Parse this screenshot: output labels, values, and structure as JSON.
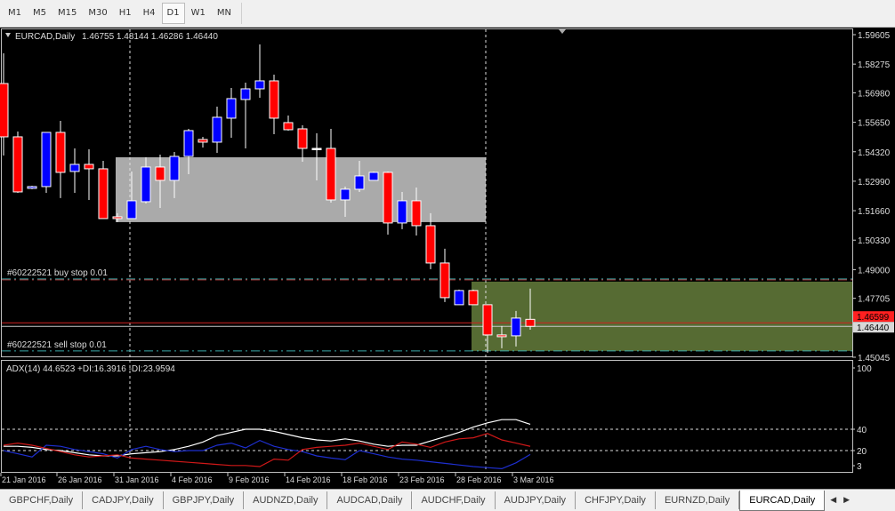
{
  "toolbar": {
    "timeframes": [
      "M1",
      "M5",
      "M15",
      "M30",
      "H1",
      "H4",
      "D1",
      "W1",
      "MN"
    ],
    "active": "D1"
  },
  "chart_header": {
    "symbol": "EURCAD,Daily",
    "ohlc": "1.46755 1.48144 1.46286 1.46440"
  },
  "colors": {
    "background": "#000000",
    "bull": "#0000ff",
    "bear": "#ff0000",
    "zone_gray": "#aaaaaa",
    "zone_green": "#566b33",
    "adx": "#ffffff",
    "plus_di": "#1e2fd0",
    "minus_di": "#d01818"
  },
  "orders": {
    "buy_stop_label": "#60222521 buy stop 0.01",
    "buy_stop_price": 1.48541,
    "sell_stop_label": "#60222521 sell stop 0.01",
    "sell_stop_price": 1.4533
  },
  "price_lines": {
    "ask_price": 1.46599,
    "ask_label": "1.46599",
    "bid_price": 1.4644,
    "bid_label": "1.46440"
  },
  "zones": [
    {
      "name": "gray-zone",
      "from_bar": 8,
      "to_bar": 34,
      "high": 1.54071,
      "low": 1.51144
    },
    {
      "name": "green-zone",
      "from_bar": 33,
      "to_bar": null,
      "high": 1.48457,
      "low": 1.4533
    }
  ],
  "separators_bars": [
    9,
    34
  ],
  "indicator": {
    "label": "ADX(14) 44.6523 +DI:16.3916 -DI:23.9594",
    "levels": [
      40,
      20
    ],
    "axis_labels": [
      "100",
      "40",
      "20",
      "3"
    ]
  },
  "chart_data": [
    {
      "type": "candlestick",
      "title": "EURCAD,Daily",
      "price_axis_labels": [
        "1.59605",
        "1.58275",
        "1.56980",
        "1.55650",
        "1.54320",
        "1.52990",
        "1.51660",
        "1.50330",
        "1.49000",
        "1.47705",
        "1.45045"
      ],
      "ylim": [
        1.45045,
        1.59605
      ],
      "date_labels": [
        {
          "text": "21 Jan 2016",
          "bar": 0
        },
        {
          "text": "26 Jan 2016",
          "bar": 4
        },
        {
          "text": "31 Jan 2016",
          "bar": 8
        },
        {
          "text": "4 Feb 2016",
          "bar": 12
        },
        {
          "text": "9 Feb 2016",
          "bar": 16
        },
        {
          "text": "14 Feb 2016",
          "bar": 20
        },
        {
          "text": "18 Feb 2016",
          "bar": 24
        },
        {
          "text": "23 Feb 2016",
          "bar": 28
        },
        {
          "text": "28 Feb 2016",
          "bar": 32
        },
        {
          "text": "3 Mar 2016",
          "bar": 36
        }
      ],
      "candles": [
        [
          1.57399,
          1.58763,
          1.54151,
          1.54993
        ],
        [
          1.54993,
          1.55234,
          1.52467,
          1.52507
        ],
        [
          1.52668,
          1.52788,
          1.52628,
          1.52748
        ],
        [
          1.52748,
          1.55194,
          1.52467,
          1.55194
        ],
        [
          1.55194,
          1.55715,
          1.52227,
          1.53389
        ],
        [
          1.5343,
          1.54472,
          1.52467,
          1.5375
        ],
        [
          1.5375,
          1.54432,
          1.52146,
          1.5355
        ],
        [
          1.5355,
          1.53911,
          1.51304,
          1.51304
        ],
        [
          1.51384,
          1.51545,
          1.51144,
          1.51304
        ],
        [
          1.51304,
          1.5343,
          1.51304,
          1.52106
        ],
        [
          1.52066,
          1.54071,
          1.51986,
          1.5363
        ],
        [
          1.5363,
          1.54191,
          1.51785,
          1.53029
        ],
        [
          1.53029,
          1.54312,
          1.52227,
          1.54111
        ],
        [
          1.54111,
          1.55354,
          1.53309,
          1.55274
        ],
        [
          1.54873,
          1.54993,
          1.54512,
          1.54753
        ],
        [
          1.54753,
          1.56357,
          1.54272,
          1.55876
        ],
        [
          1.55836,
          1.57199,
          1.54953,
          1.56718
        ],
        [
          1.56678,
          1.5744,
          1.54472,
          1.57159
        ],
        [
          1.57159,
          1.59164,
          1.56758,
          1.5752
        ],
        [
          1.5752,
          1.578,
          1.55114,
          1.55836
        ],
        [
          1.55635,
          1.55956,
          1.55274,
          1.55314
        ],
        [
          1.55354,
          1.55515,
          1.53871,
          1.54472
        ],
        [
          1.54472,
          1.55154,
          1.53029,
          1.54472
        ],
        [
          1.54472,
          1.55354,
          1.52026,
          1.52146
        ],
        [
          1.52146,
          1.52748,
          1.51384,
          1.52628
        ],
        [
          1.52628,
          1.53911,
          1.52507,
          1.53229
        ],
        [
          1.53029,
          1.5343,
          1.53029,
          1.53389
        ],
        [
          1.53389,
          1.5343,
          1.50582,
          1.51104
        ],
        [
          1.51104,
          1.52507,
          1.50823,
          1.52106
        ],
        [
          1.52106,
          1.52708,
          1.50542,
          1.50983
        ],
        [
          1.50983,
          1.51545,
          1.49019,
          1.49299
        ],
        [
          1.49299,
          1.49941,
          1.47535,
          1.47735
        ],
        [
          1.47415,
          1.48096,
          1.47415,
          1.48056
        ],
        [
          1.48056,
          1.48096,
          1.47415,
          1.47415
        ],
        [
          1.47415,
          1.47415,
          1.45249,
          1.46051
        ],
        [
          1.46051,
          1.46452,
          1.4545,
          1.45971
        ],
        [
          1.46011,
          1.47134,
          1.4553,
          1.46813
        ],
        [
          1.46755,
          1.48144,
          1.46286,
          1.4644
        ]
      ]
    },
    {
      "type": "line",
      "title": "ADX(14)",
      "ylim": [
        0,
        100
      ],
      "series": [
        {
          "name": "ADX",
          "values": [
            24,
            24,
            23,
            21,
            20,
            18,
            16,
            15,
            15,
            17,
            18,
            19,
            21,
            24,
            28,
            34,
            37,
            40,
            40,
            38,
            35,
            32,
            30,
            29,
            31,
            29,
            26,
            24,
            25,
            25,
            29,
            33,
            37,
            42,
            46,
            49,
            49,
            44.65
          ]
        },
        {
          "name": "+DI",
          "values": [
            20,
            17,
            14,
            25,
            24,
            21,
            19,
            17,
            13,
            21,
            24,
            21,
            19,
            20,
            20,
            25,
            27,
            22.5,
            29.5,
            24,
            21,
            19,
            15,
            13,
            11.5,
            20,
            17,
            14,
            12,
            11,
            9.5,
            8,
            6.5,
            5,
            4,
            3,
            8.5,
            16.39
          ]
        },
        {
          "name": "-DI",
          "values": [
            25,
            27,
            25,
            22,
            19,
            16,
            14,
            15,
            16,
            13,
            12,
            11,
            10,
            9,
            8,
            7,
            6,
            6,
            5,
            12,
            11,
            21,
            23,
            24,
            25,
            27,
            24,
            21,
            28,
            26,
            23,
            28,
            31,
            32,
            36,
            30,
            27,
            23.96
          ]
        }
      ]
    }
  ],
  "tabs": [
    "GBPCHF,Daily",
    "CADJPY,Daily",
    "GBPJPY,Daily",
    "AUDNZD,Daily",
    "AUDCAD,Daily",
    "AUDCHF,Daily",
    "AUDJPY,Daily",
    "CHFJPY,Daily",
    "EURNZD,Daily",
    "EURCAD,Daily"
  ],
  "active_tab": "EURCAD,Daily",
  "tab_arrows": {
    "left": "◀",
    "right": "▶"
  }
}
